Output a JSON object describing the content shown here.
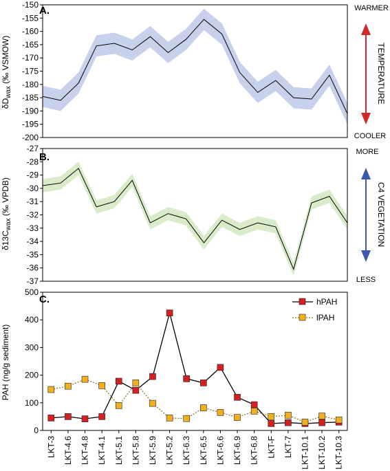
{
  "chart_data": [
    {
      "type": "line",
      "panel_label": "A.",
      "ylabel_main": "δD",
      "ylabel_sub": "wax",
      "ylabel_rest": " (‰ VSMOW)",
      "ylim": [
        -200,
        -150
      ],
      "yticks": [
        -150,
        -155,
        -160,
        -165,
        -170,
        -175,
        -180,
        -185,
        -190,
        -195,
        -200
      ],
      "series": [
        {
          "values": [
            -184.5,
            -186,
            -179.5,
            -165.5,
            -164.5,
            -167,
            -162,
            -168,
            -163,
            -155.5,
            -161,
            -175.5,
            -183,
            -178.5,
            -185,
            -185.5,
            -176.5,
            -191
          ],
          "lower": [
            -188.5,
            -190,
            -183.5,
            -169.5,
            -168.5,
            -171,
            -166,
            -172,
            -167,
            -159.5,
            -165,
            -179.5,
            -187,
            -182.5,
            -189,
            -189.5,
            -180.5,
            -195
          ],
          "upper": [
            -180.5,
            -182,
            -175.5,
            -161.5,
            -160.5,
            -163,
            -158,
            -164,
            -159,
            -151.5,
            -157,
            -171.5,
            -179,
            -174.5,
            -181,
            -181.5,
            -172.5,
            -187
          ]
        }
      ],
      "band_color": "#c7d1ec",
      "line_color": "#000000",
      "indicator": {
        "top_label": "WARMER",
        "bottom_label": "COOLER",
        "side_label": "TEMPERATURE",
        "color": "#cf2a2a"
      }
    },
    {
      "type": "line",
      "panel_label": "B.",
      "ylabel_main": "δ13C",
      "ylabel_sub": "wax",
      "ylabel_rest": " (‰ VPDB)",
      "ylim": [
        -37,
        -27
      ],
      "yticks": [
        -27,
        -28,
        -29,
        -30,
        -31,
        -32,
        -33,
        -34,
        -35,
        -36,
        -37
      ],
      "series": [
        {
          "values": [
            -29.8,
            -29.6,
            -28.5,
            -31.4,
            -31.0,
            -29.4,
            -32.6,
            -31.9,
            -32.3,
            -34.1,
            -32.4,
            -33.1,
            -32.6,
            -32.9,
            -36.1,
            -31.1,
            -30.6,
            -32.6
          ],
          "lower": [
            -30.3,
            -30.1,
            -29.0,
            -31.9,
            -31.5,
            -29.9,
            -33.1,
            -32.4,
            -32.8,
            -34.6,
            -32.9,
            -33.6,
            -33.1,
            -33.4,
            -36.6,
            -31.6,
            -31.1,
            -33.1
          ],
          "upper": [
            -29.3,
            -29.1,
            -28.0,
            -30.9,
            -30.5,
            -28.9,
            -32.1,
            -31.4,
            -31.8,
            -33.6,
            -31.9,
            -32.6,
            -32.1,
            -32.4,
            -35.6,
            -30.6,
            -30.1,
            -32.1
          ]
        }
      ],
      "band_color": "#d9ecc9",
      "line_color": "#000000",
      "indicator": {
        "top_label": "MORE",
        "bottom_label": "LESS",
        "side_label": "C4 VEGETATION",
        "color": "#3b58b0"
      }
    },
    {
      "type": "line",
      "panel_label": "C.",
      "ylabel": "PAH (ng/g sediment)",
      "ylim": [
        0,
        500
      ],
      "yticks": [
        0,
        100,
        200,
        300,
        400,
        500
      ],
      "categories": [
        "LKT-3",
        "LKT-4.6",
        "LKT-4.8",
        "LKT-4.1",
        "LKT-5.1",
        "LKT-5.8",
        "LKT-5.9",
        "LKT-5.2",
        "LKT-6.3",
        "LKT-6.5",
        "LKT-6.6",
        "LKT-6.9",
        "LKT-6.8",
        "LKT-F",
        "LKT-7",
        "LKT-10.1",
        "LKT-10.2",
        "LKT-10.3"
      ],
      "series": [
        {
          "name": "hPAH",
          "color": "#d42020",
          "style": "solid",
          "values": [
            45,
            50,
            42,
            50,
            178,
            145,
            195,
            425,
            187,
            172,
            228,
            120,
            93,
            25,
            28,
            25,
            28,
            30
          ]
        },
        {
          "name": "lPAH",
          "color": "#f0b020",
          "style": "dotted",
          "values": [
            148,
            160,
            185,
            162,
            90,
            172,
            98,
            45,
            43,
            82,
            65,
            47,
            70,
            50,
            55,
            30,
            52,
            38
          ]
        }
      ],
      "legend_placement": "top-right"
    }
  ]
}
